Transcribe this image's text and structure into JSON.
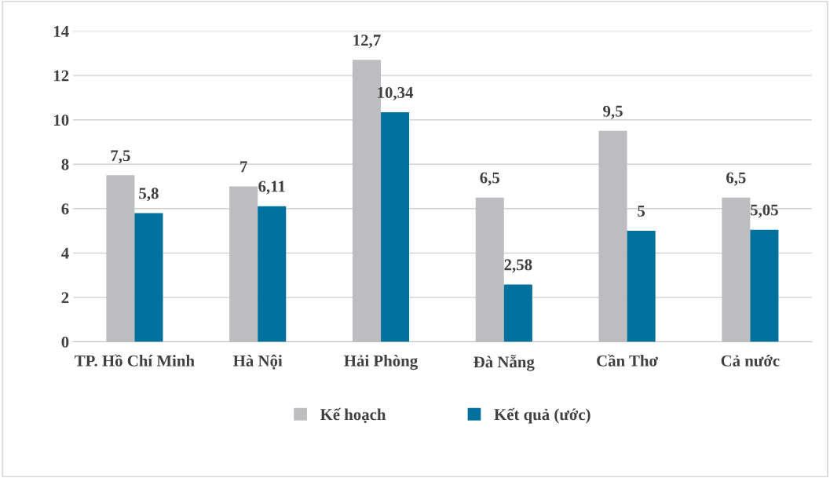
{
  "chart_data": {
    "type": "bar",
    "categories": [
      "TP. Hồ Chí Minh",
      "Hà Nội",
      "Hải Phòng",
      "Đà Nẵng",
      "Cần Thơ",
      "Cả nước"
    ],
    "series": [
      {
        "name": "Kế hoạch",
        "color": "#bdbdc1",
        "values": [
          7.5,
          7,
          12.7,
          6.5,
          9.5,
          6.5
        ]
      },
      {
        "name": "Kết quả (ước)",
        "color": "#00709c",
        "values": [
          5.8,
          6.11,
          10.34,
          2.58,
          5,
          5.05
        ]
      }
    ],
    "ylim": [
      0,
      14
    ],
    "yticks": [
      0,
      2,
      4,
      6,
      8,
      10,
      12,
      14
    ],
    "grid": "y",
    "legend": "bottom",
    "value_labels": [
      [
        "7,5",
        "7",
        "12,7",
        "6,5",
        "9,5",
        "6,5"
      ],
      [
        "5,8",
        "6,11",
        "10,34",
        "2,58",
        "5",
        "5,05"
      ]
    ]
  }
}
